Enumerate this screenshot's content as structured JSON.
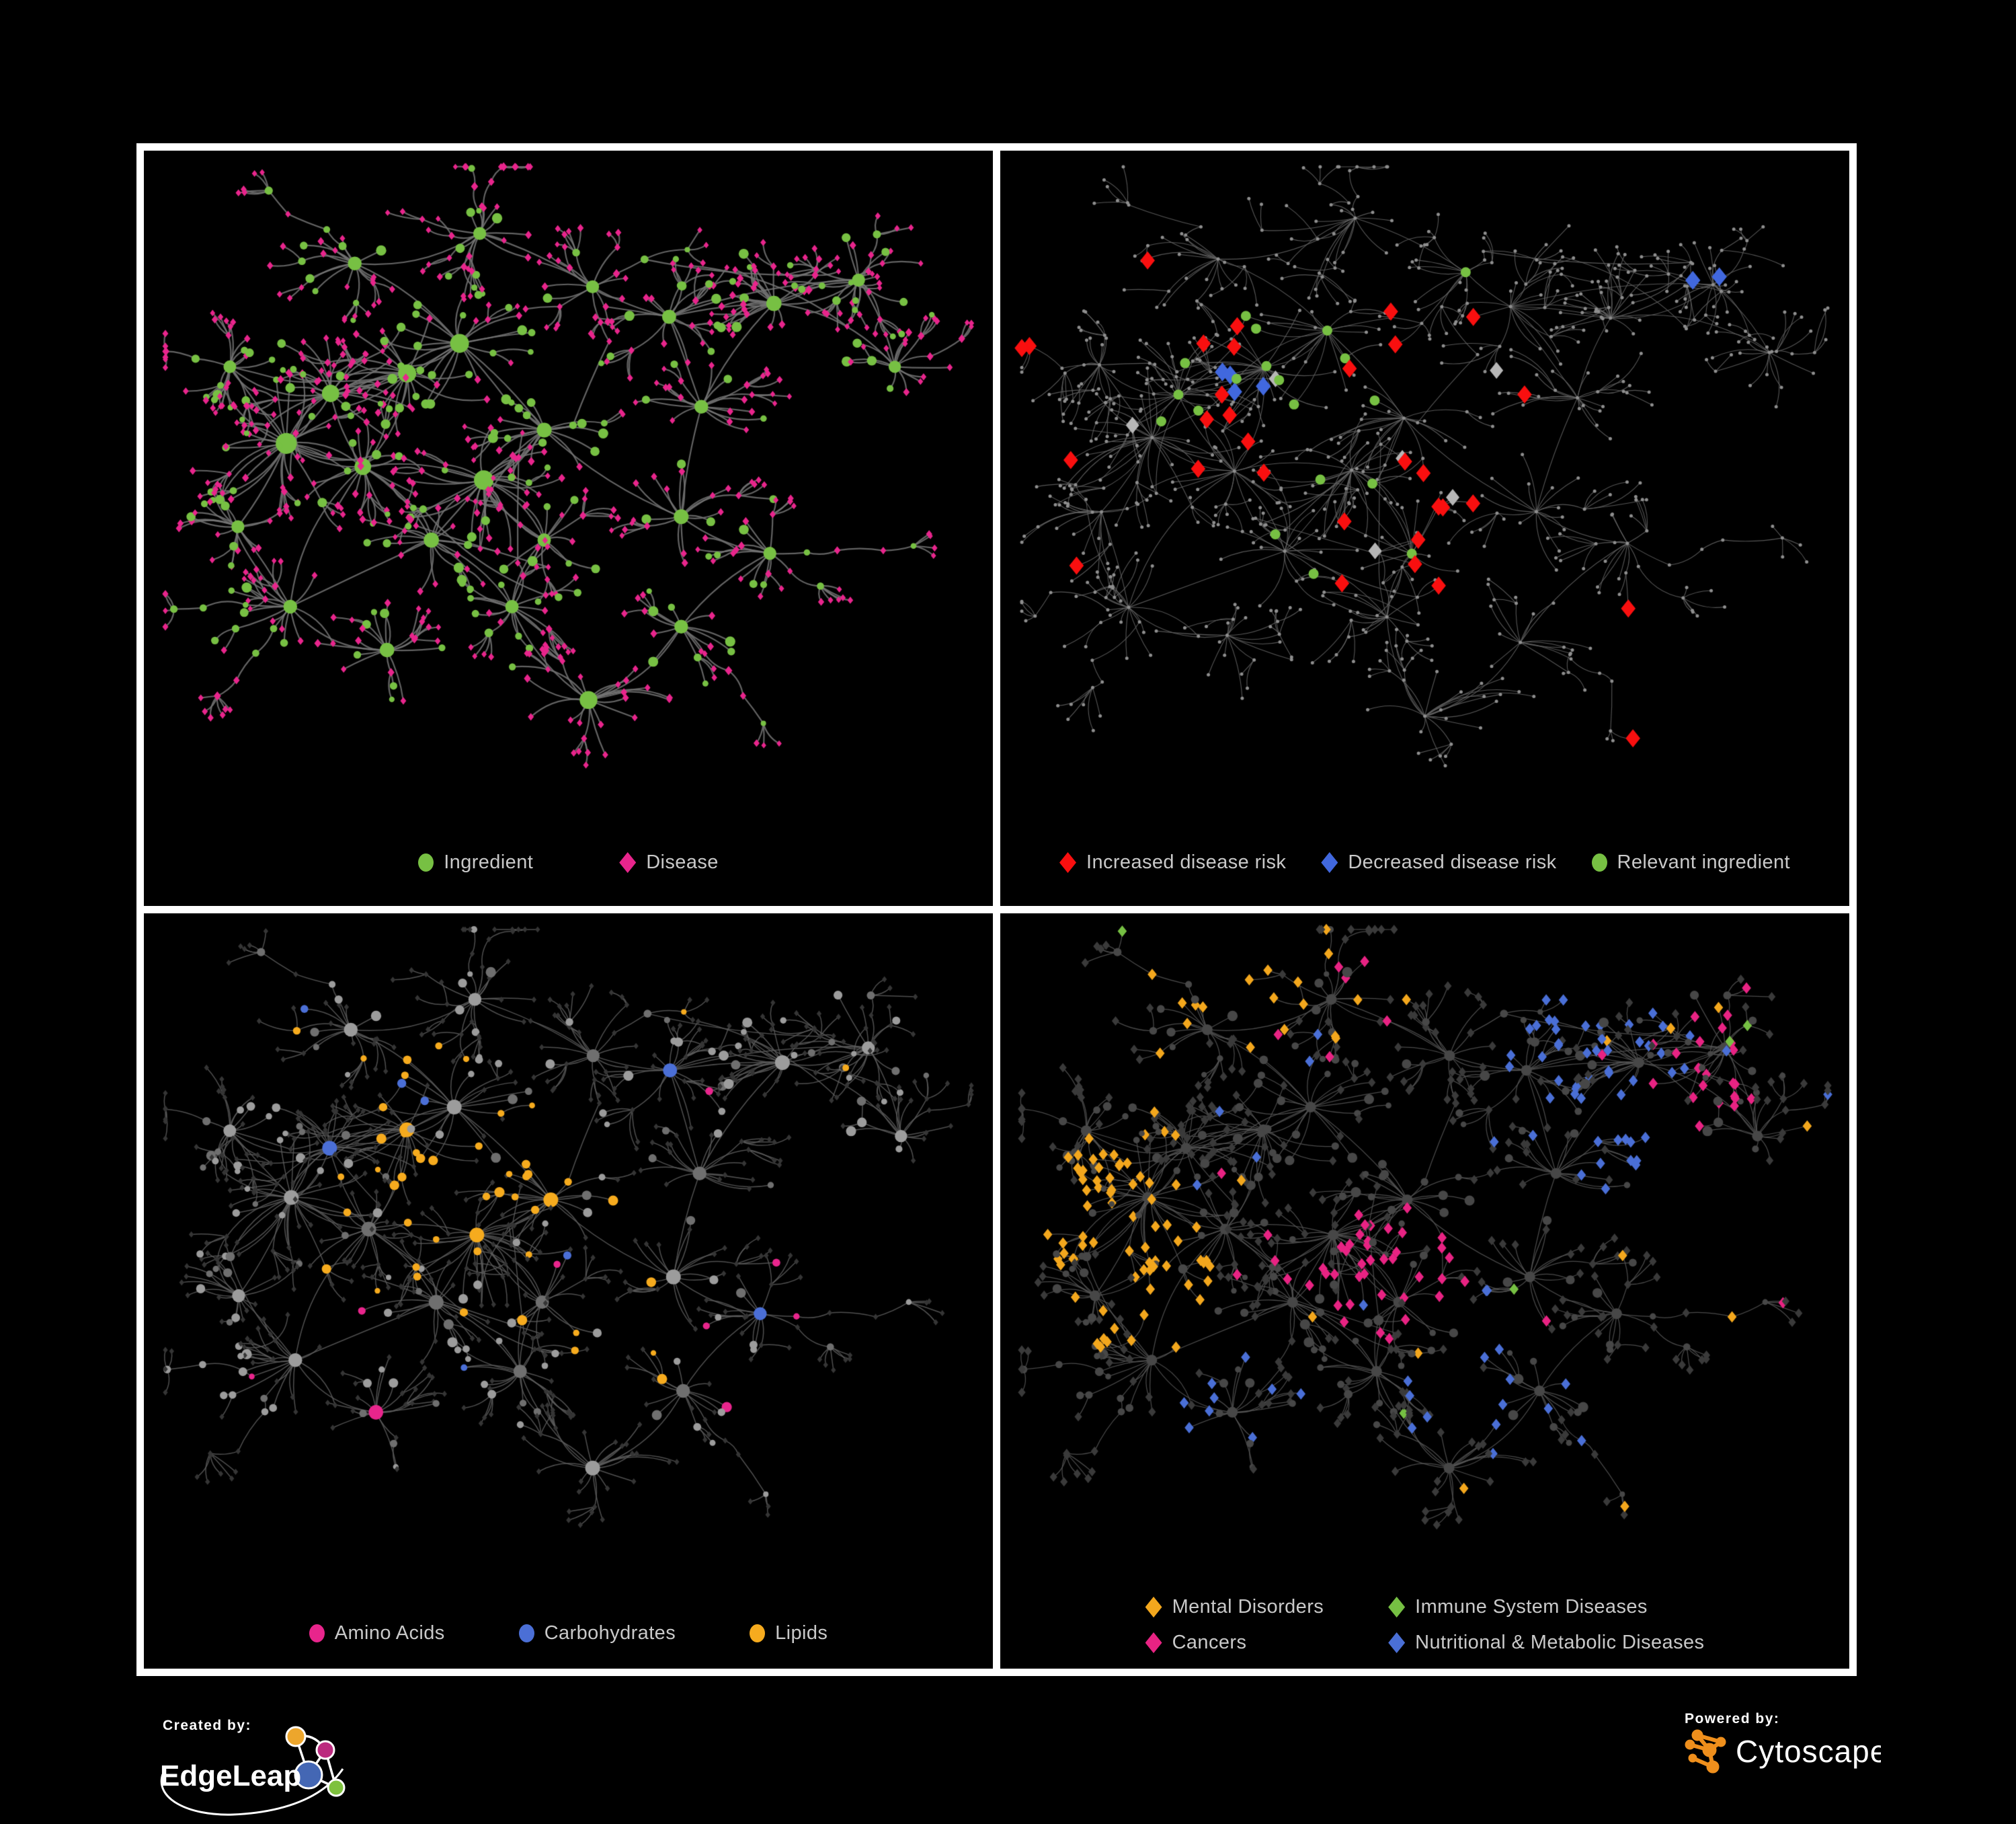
{
  "page": {
    "background": "#000000",
    "frame_color": "#ffffff"
  },
  "footer": {
    "created_by": "Created by:",
    "brand_name": "EdgeLeap",
    "powered_by": "Powered by:",
    "engine_name": "Cytoscape"
  },
  "panels": [
    {
      "id": "ingredient-disease-network",
      "legend": [
        {
          "label": "Ingredient",
          "shape": "circle",
          "color": "#77c043"
        },
        {
          "label": "Disease",
          "shape": "diamond",
          "color": "#e8258c"
        }
      ]
    },
    {
      "id": "disease-risk-network",
      "legend": [
        {
          "label": "Increased disease risk",
          "shape": "diamond",
          "color": "#f90f0f"
        },
        {
          "label": "Decreased disease risk",
          "shape": "diamond",
          "color": "#4168de"
        },
        {
          "label": "Relevant ingredient",
          "shape": "circle",
          "color": "#77c043"
        }
      ]
    },
    {
      "id": "nutrient-class-network",
      "legend": [
        {
          "label": "Amino Acids",
          "shape": "circle",
          "color": "#e8258c"
        },
        {
          "label": "Carbohydrates",
          "shape": "circle",
          "color": "#4b6fd6"
        },
        {
          "label": "Lipids",
          "shape": "circle",
          "color": "#f6ab1e"
        }
      ]
    },
    {
      "id": "disease-class-network",
      "legend": [
        {
          "label": "Mental Disorders",
          "shape": "diamond",
          "color": "#f3a71d"
        },
        {
          "label": "Immune System Diseases",
          "shape": "diamond",
          "color": "#76c043"
        },
        {
          "label": "Cancers",
          "shape": "diamond",
          "color": "#e82383"
        },
        {
          "label": "Nutritional & Metabolic Diseases",
          "shape": "diamond",
          "color": "#4a6fd6"
        }
      ]
    }
  ],
  "network": {
    "seed": 1337,
    "jitter": [
      0,
      0.05,
      0.028,
      0.028
    ],
    "jitter_seeds": [
      1,
      2,
      3,
      3
    ],
    "class_seeds": [
      10,
      77,
      911,
      2024
    ],
    "hubs": [
      [
        0.15,
        0.415,
        3.2,
        0,
        0.22
      ],
      [
        0.205,
        0.34,
        2.2,
        0,
        0.22
      ],
      [
        0.245,
        0.45,
        2.0,
        0,
        0.22
      ],
      [
        0.3,
        0.31,
        2.4,
        0,
        0.3
      ],
      [
        0.365,
        0.265,
        2.6,
        0,
        0.85
      ],
      [
        0.395,
        0.47,
        2.8,
        0,
        0.2
      ],
      [
        0.33,
        0.56,
        1.6,
        0,
        0.25
      ],
      [
        0.47,
        0.395,
        1.5,
        0,
        0.6
      ],
      [
        0.235,
        0.145,
        1.2,
        1,
        0.3
      ],
      [
        0.39,
        0.1,
        1.0,
        1,
        0.25
      ],
      [
        0.53,
        0.18,
        1.0,
        1,
        0.25
      ],
      [
        0.625,
        0.225,
        1.3,
        0,
        0.3
      ],
      [
        0.755,
        0.205,
        1.6,
        1,
        0.25
      ],
      [
        0.86,
        0.17,
        1.0,
        1,
        0.25
      ],
      [
        0.665,
        0.36,
        1.2,
        0,
        0.25
      ],
      [
        0.64,
        0.525,
        1.5,
        0,
        0.25
      ],
      [
        0.155,
        0.66,
        1.2,
        1,
        0.25
      ],
      [
        0.275,
        0.725,
        1.4,
        0,
        0.25
      ],
      [
        0.43,
        0.66,
        1.1,
        0,
        0.25
      ],
      [
        0.525,
        0.8,
        2.3,
        0,
        0.1
      ],
      [
        0.64,
        0.69,
        1.2,
        1,
        0.25
      ],
      [
        0.75,
        0.58,
        1.0,
        1,
        0.25
      ],
      [
        0.09,
        0.54,
        1.0,
        0,
        0.25
      ],
      [
        0.47,
        0.56,
        1.1,
        0,
        0.25
      ],
      [
        0.08,
        0.3,
        0.9,
        1,
        0.25
      ],
      [
        0.905,
        0.3,
        0.8,
        1,
        0.25
      ]
    ],
    "styles": [
      {
        "edge": "#747474",
        "edge_w": 2.2,
        "circle": "#77c043",
        "diamond": "#e8258c"
      },
      {
        "edge": "#656565",
        "edge_w": 1.1,
        "base": "#8e8e8e",
        "tiny": 2.5,
        "red": "#f90f0f",
        "red_center": [
          0.42,
          0.4
        ],
        "red_r": 0.24,
        "red_p": 0.17,
        "red_cap": 30,
        "red_far_p": 0.02,
        "blue": "#4168de",
        "blue_anchors": [
          [
            0.265,
            0.315
          ],
          [
            0.252,
            0.348
          ],
          [
            0.292,
            0.338
          ],
          [
            0.845,
            0.175
          ],
          [
            0.868,
            0.172
          ],
          [
            0.252,
            0.298
          ]
        ],
        "neutral": "#b6b6b6",
        "neutral_anchors": [
          [
            0.315,
            0.3
          ],
          [
            0.485,
            0.415
          ],
          [
            0.545,
            0.478
          ],
          [
            0.165,
            0.402
          ],
          [
            0.568,
            0.318
          ],
          [
            0.462,
            0.565
          ]
        ],
        "green": "#77c043",
        "green_center": [
          0.4,
          0.4
        ],
        "green_r": 0.26,
        "green_p": 0.2,
        "green_cap": 19
      },
      {
        "edge": "#5d5d5d",
        "edge_w": 1.5,
        "diamond": "#353535",
        "circle": "#9c9c9c",
        "circle2": "#6f6f6f",
        "classes": [
          {
            "color": "#f6ab1e",
            "anchors": [
              [
                0.37,
                0.27
              ],
              [
                0.46,
                0.4
              ],
              [
                0.35,
                0.5
              ],
              [
                0.55,
                0.62
              ],
              [
                0.31,
                0.37
              ]
            ],
            "r1": 0.055,
            "p1": 0.8,
            "r2": 0.115,
            "p2": 0.35,
            "sparse": 0.02
          },
          {
            "color": "#4b6fd6",
            "anchors": [
              [
                0.295,
                0.215
              ],
              [
                0.335,
                0.245
              ],
              [
                0.47,
                0.44
              ]
            ],
            "r1": 0.045,
            "p1": 0.55,
            "r2": 0.08,
            "p2": 0.2,
            "sparse": 0.015
          },
          {
            "color": "#e8258c",
            "anchors": [],
            "r1": 0,
            "p1": 0,
            "r2": 0,
            "p2": 0,
            "sparse": 0.055
          }
        ]
      },
      {
        "edge": "#575757",
        "edge_w": 1.25,
        "circle": "#474747",
        "diamond": "#3a3a3a",
        "classes": [
          {
            "color": "#f3a71d",
            "anchors": [
              [
                0.13,
                0.45
              ],
              [
                0.1,
                0.385
              ],
              [
                0.165,
                0.515
              ],
              [
                0.075,
                0.1
              ],
              [
                0.3,
                0.08
              ]
            ],
            "r1": 0.065,
            "p1": 0.85,
            "r2": 0.125,
            "p2": 0.4,
            "sparse": 0.02
          },
          {
            "color": "#e82383",
            "anchors": [
              [
                0.44,
                0.5
              ],
              [
                0.405,
                0.555
              ],
              [
                0.5,
                0.465
              ],
              [
                0.88,
                0.205
              ],
              [
                0.375,
                0.105
              ]
            ],
            "r1": 0.055,
            "p1": 0.6,
            "r2": 0.105,
            "p2": 0.3,
            "sparse": 0.02
          },
          {
            "color": "#4a6fd6",
            "anchors": [
              [
                0.6,
                0.64
              ],
              [
                0.575,
                0.68
              ],
              [
                0.73,
                0.28
              ],
              [
                0.78,
                0.225
              ],
              [
                0.635,
                0.105
              ],
              [
                0.805,
                0.35
              ],
              [
                0.255,
                0.75
              ]
            ],
            "r1": 0.055,
            "p1": 0.7,
            "r2": 0.105,
            "p2": 0.33,
            "sparse": 0.03
          },
          {
            "color": "#76c043",
            "anchors": [],
            "r1": 0,
            "p1": 0,
            "r2": 0,
            "p2": 0,
            "sparse": 0.012
          }
        ]
      }
    ]
  }
}
